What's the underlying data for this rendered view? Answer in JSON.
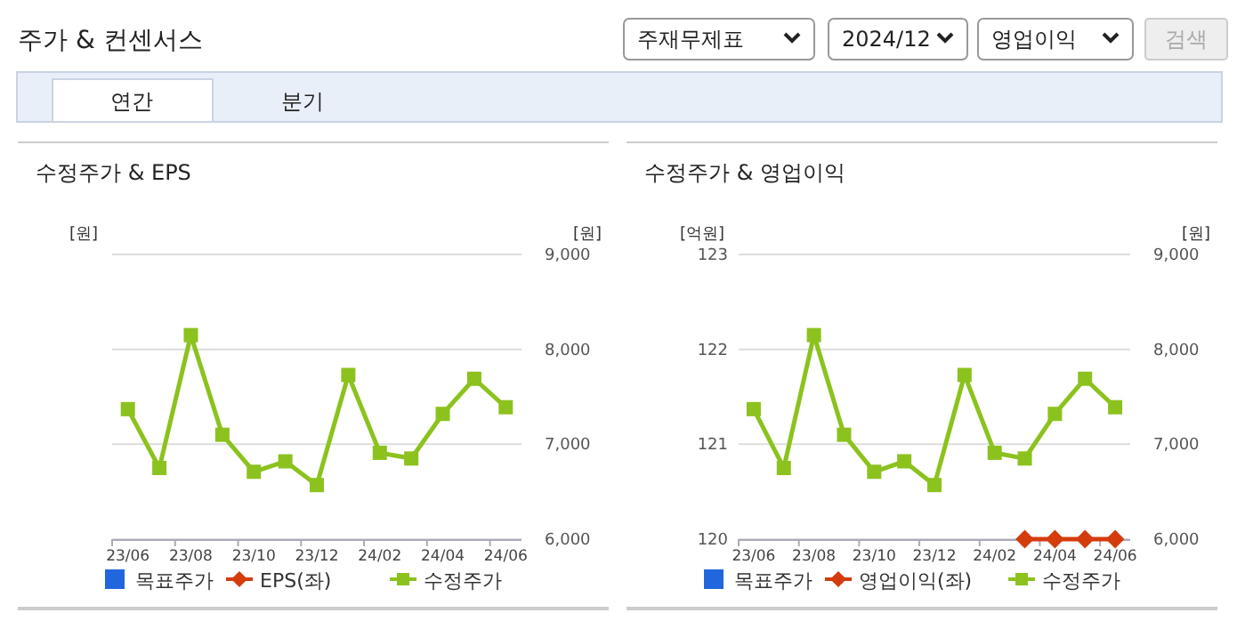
{
  "chart_data": [
    {
      "type": "other",
      "title": "주가 & 컨센서스",
      "annotations": [
        "주재무제표",
        "2024/12",
        "영업이익",
        "검색",
        "연간",
        "분기"
      ]
    },
    {
      "type": "line",
      "title": "수정주가 & EPS",
      "ylabel": "[원]",
      "y2label": "[원]",
      "categories": [
        "23/06",
        null,
        "23/08",
        null,
        "23/10",
        null,
        "23/12",
        null,
        "24/02",
        null,
        "24/04",
        null,
        "24/06"
      ],
      "y2lim": [
        6000,
        9000
      ],
      "y2ticks": [
        {
          "value": 6000,
          "label": "6,000"
        },
        {
          "value": 7000,
          "label": "7,000"
        },
        {
          "value": 8000,
          "label": "8,000"
        },
        {
          "value": 9000,
          "label": "9,000"
        }
      ],
      "grid": "y",
      "legend": "bottom",
      "series": [
        {
          "name": "목표주가",
          "type": "scatter",
          "marker": "square",
          "color": "#2266dd",
          "axis": "y2",
          "values": [
            null,
            null,
            null,
            null,
            null,
            null,
            null,
            null,
            null,
            null,
            null,
            null,
            null
          ]
        },
        {
          "name": "EPS(좌)",
          "type": "line",
          "marker": "diamond",
          "color": "#d43c0c",
          "axis": "y",
          "values": [
            null,
            null,
            null,
            null,
            null,
            null,
            null,
            null,
            null,
            null,
            null,
            null,
            null
          ]
        },
        {
          "name": "수정주가",
          "type": "line",
          "marker": "square",
          "color": "#8cc21e",
          "axis": "y2",
          "values": [
            7370,
            6750,
            8150,
            7100,
            6710,
            6820,
            6570,
            7730,
            6910,
            6850,
            7320,
            7690,
            7390
          ]
        }
      ]
    },
    {
      "type": "line",
      "title": "수정주가 & 영업이익",
      "ylabel": "[억원]",
      "y2label": "[원]",
      "categories": [
        "23/06",
        null,
        "23/08",
        null,
        "23/10",
        null,
        "23/12",
        null,
        "24/02",
        null,
        "24/04",
        null,
        "24/06"
      ],
      "ylim": [
        120,
        123
      ],
      "yticks": [
        120,
        121,
        122,
        123
      ],
      "y2lim": [
        6000,
        9000
      ],
      "y2ticks": [
        {
          "value": 6000,
          "label": "6,000"
        },
        {
          "value": 7000,
          "label": "7,000"
        },
        {
          "value": 8000,
          "label": "8,000"
        },
        {
          "value": 9000,
          "label": "9,000"
        }
      ],
      "grid": "y",
      "legend": "bottom",
      "series": [
        {
          "name": "목표주가",
          "type": "scatter",
          "marker": "square",
          "color": "#2266dd",
          "axis": "y2",
          "values": [
            null,
            null,
            null,
            null,
            null,
            null,
            null,
            null,
            null,
            null,
            null,
            null,
            null
          ]
        },
        {
          "name": "영업이익(좌)",
          "type": "line",
          "marker": "diamond",
          "color": "#d43c0c",
          "axis": "y",
          "values": [
            null,
            null,
            null,
            null,
            null,
            null,
            null,
            null,
            null,
            120,
            120,
            120,
            120
          ]
        },
        {
          "name": "수정주가",
          "type": "line",
          "marker": "square",
          "color": "#8cc21e",
          "axis": "y2",
          "values": [
            7370,
            6750,
            8150,
            7100,
            6710,
            6820,
            6570,
            7730,
            6910,
            6850,
            7320,
            7690,
            7390
          ]
        }
      ]
    }
  ]
}
